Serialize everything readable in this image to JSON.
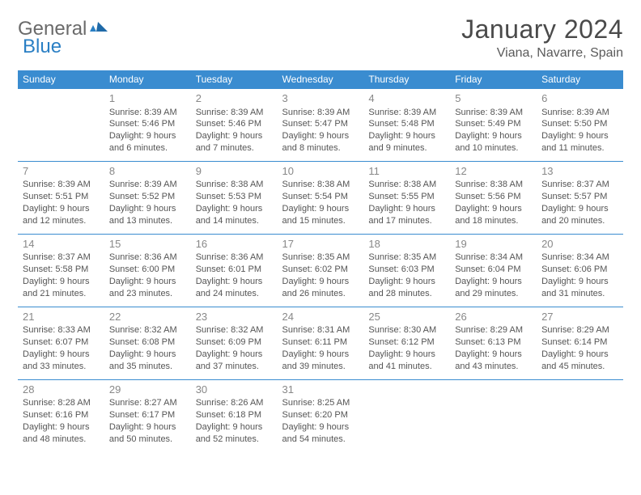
{
  "logo": {
    "text1": "General",
    "text2": "Blue"
  },
  "title": "January 2024",
  "location": "Viana, Navarre, Spain",
  "day_headers": [
    "Sunday",
    "Monday",
    "Tuesday",
    "Wednesday",
    "Thursday",
    "Friday",
    "Saturday"
  ],
  "colors": {
    "header_bg": "#3a8cd0",
    "header_text": "#ffffff",
    "logo_blue": "#2a7fc4",
    "text": "#4a4a4a"
  },
  "weeks": [
    [
      null,
      {
        "n": "1",
        "sunrise": "Sunrise: 8:39 AM",
        "sunset": "Sunset: 5:46 PM",
        "daylight": "Daylight: 9 hours and 6 minutes."
      },
      {
        "n": "2",
        "sunrise": "Sunrise: 8:39 AM",
        "sunset": "Sunset: 5:46 PM",
        "daylight": "Daylight: 9 hours and 7 minutes."
      },
      {
        "n": "3",
        "sunrise": "Sunrise: 8:39 AM",
        "sunset": "Sunset: 5:47 PM",
        "daylight": "Daylight: 9 hours and 8 minutes."
      },
      {
        "n": "4",
        "sunrise": "Sunrise: 8:39 AM",
        "sunset": "Sunset: 5:48 PM",
        "daylight": "Daylight: 9 hours and 9 minutes."
      },
      {
        "n": "5",
        "sunrise": "Sunrise: 8:39 AM",
        "sunset": "Sunset: 5:49 PM",
        "daylight": "Daylight: 9 hours and 10 minutes."
      },
      {
        "n": "6",
        "sunrise": "Sunrise: 8:39 AM",
        "sunset": "Sunset: 5:50 PM",
        "daylight": "Daylight: 9 hours and 11 minutes."
      }
    ],
    [
      {
        "n": "7",
        "sunrise": "Sunrise: 8:39 AM",
        "sunset": "Sunset: 5:51 PM",
        "daylight": "Daylight: 9 hours and 12 minutes."
      },
      {
        "n": "8",
        "sunrise": "Sunrise: 8:39 AM",
        "sunset": "Sunset: 5:52 PM",
        "daylight": "Daylight: 9 hours and 13 minutes."
      },
      {
        "n": "9",
        "sunrise": "Sunrise: 8:38 AM",
        "sunset": "Sunset: 5:53 PM",
        "daylight": "Daylight: 9 hours and 14 minutes."
      },
      {
        "n": "10",
        "sunrise": "Sunrise: 8:38 AM",
        "sunset": "Sunset: 5:54 PM",
        "daylight": "Daylight: 9 hours and 15 minutes."
      },
      {
        "n": "11",
        "sunrise": "Sunrise: 8:38 AM",
        "sunset": "Sunset: 5:55 PM",
        "daylight": "Daylight: 9 hours and 17 minutes."
      },
      {
        "n": "12",
        "sunrise": "Sunrise: 8:38 AM",
        "sunset": "Sunset: 5:56 PM",
        "daylight": "Daylight: 9 hours and 18 minutes."
      },
      {
        "n": "13",
        "sunrise": "Sunrise: 8:37 AM",
        "sunset": "Sunset: 5:57 PM",
        "daylight": "Daylight: 9 hours and 20 minutes."
      }
    ],
    [
      {
        "n": "14",
        "sunrise": "Sunrise: 8:37 AM",
        "sunset": "Sunset: 5:58 PM",
        "daylight": "Daylight: 9 hours and 21 minutes."
      },
      {
        "n": "15",
        "sunrise": "Sunrise: 8:36 AM",
        "sunset": "Sunset: 6:00 PM",
        "daylight": "Daylight: 9 hours and 23 minutes."
      },
      {
        "n": "16",
        "sunrise": "Sunrise: 8:36 AM",
        "sunset": "Sunset: 6:01 PM",
        "daylight": "Daylight: 9 hours and 24 minutes."
      },
      {
        "n": "17",
        "sunrise": "Sunrise: 8:35 AM",
        "sunset": "Sunset: 6:02 PM",
        "daylight": "Daylight: 9 hours and 26 minutes."
      },
      {
        "n": "18",
        "sunrise": "Sunrise: 8:35 AM",
        "sunset": "Sunset: 6:03 PM",
        "daylight": "Daylight: 9 hours and 28 minutes."
      },
      {
        "n": "19",
        "sunrise": "Sunrise: 8:34 AM",
        "sunset": "Sunset: 6:04 PM",
        "daylight": "Daylight: 9 hours and 29 minutes."
      },
      {
        "n": "20",
        "sunrise": "Sunrise: 8:34 AM",
        "sunset": "Sunset: 6:06 PM",
        "daylight": "Daylight: 9 hours and 31 minutes."
      }
    ],
    [
      {
        "n": "21",
        "sunrise": "Sunrise: 8:33 AM",
        "sunset": "Sunset: 6:07 PM",
        "daylight": "Daylight: 9 hours and 33 minutes."
      },
      {
        "n": "22",
        "sunrise": "Sunrise: 8:32 AM",
        "sunset": "Sunset: 6:08 PM",
        "daylight": "Daylight: 9 hours and 35 minutes."
      },
      {
        "n": "23",
        "sunrise": "Sunrise: 8:32 AM",
        "sunset": "Sunset: 6:09 PM",
        "daylight": "Daylight: 9 hours and 37 minutes."
      },
      {
        "n": "24",
        "sunrise": "Sunrise: 8:31 AM",
        "sunset": "Sunset: 6:11 PM",
        "daylight": "Daylight: 9 hours and 39 minutes."
      },
      {
        "n": "25",
        "sunrise": "Sunrise: 8:30 AM",
        "sunset": "Sunset: 6:12 PM",
        "daylight": "Daylight: 9 hours and 41 minutes."
      },
      {
        "n": "26",
        "sunrise": "Sunrise: 8:29 AM",
        "sunset": "Sunset: 6:13 PM",
        "daylight": "Daylight: 9 hours and 43 minutes."
      },
      {
        "n": "27",
        "sunrise": "Sunrise: 8:29 AM",
        "sunset": "Sunset: 6:14 PM",
        "daylight": "Daylight: 9 hours and 45 minutes."
      }
    ],
    [
      {
        "n": "28",
        "sunrise": "Sunrise: 8:28 AM",
        "sunset": "Sunset: 6:16 PM",
        "daylight": "Daylight: 9 hours and 48 minutes."
      },
      {
        "n": "29",
        "sunrise": "Sunrise: 8:27 AM",
        "sunset": "Sunset: 6:17 PM",
        "daylight": "Daylight: 9 hours and 50 minutes."
      },
      {
        "n": "30",
        "sunrise": "Sunrise: 8:26 AM",
        "sunset": "Sunset: 6:18 PM",
        "daylight": "Daylight: 9 hours and 52 minutes."
      },
      {
        "n": "31",
        "sunrise": "Sunrise: 8:25 AM",
        "sunset": "Sunset: 6:20 PM",
        "daylight": "Daylight: 9 hours and 54 minutes."
      },
      null,
      null,
      null
    ]
  ]
}
